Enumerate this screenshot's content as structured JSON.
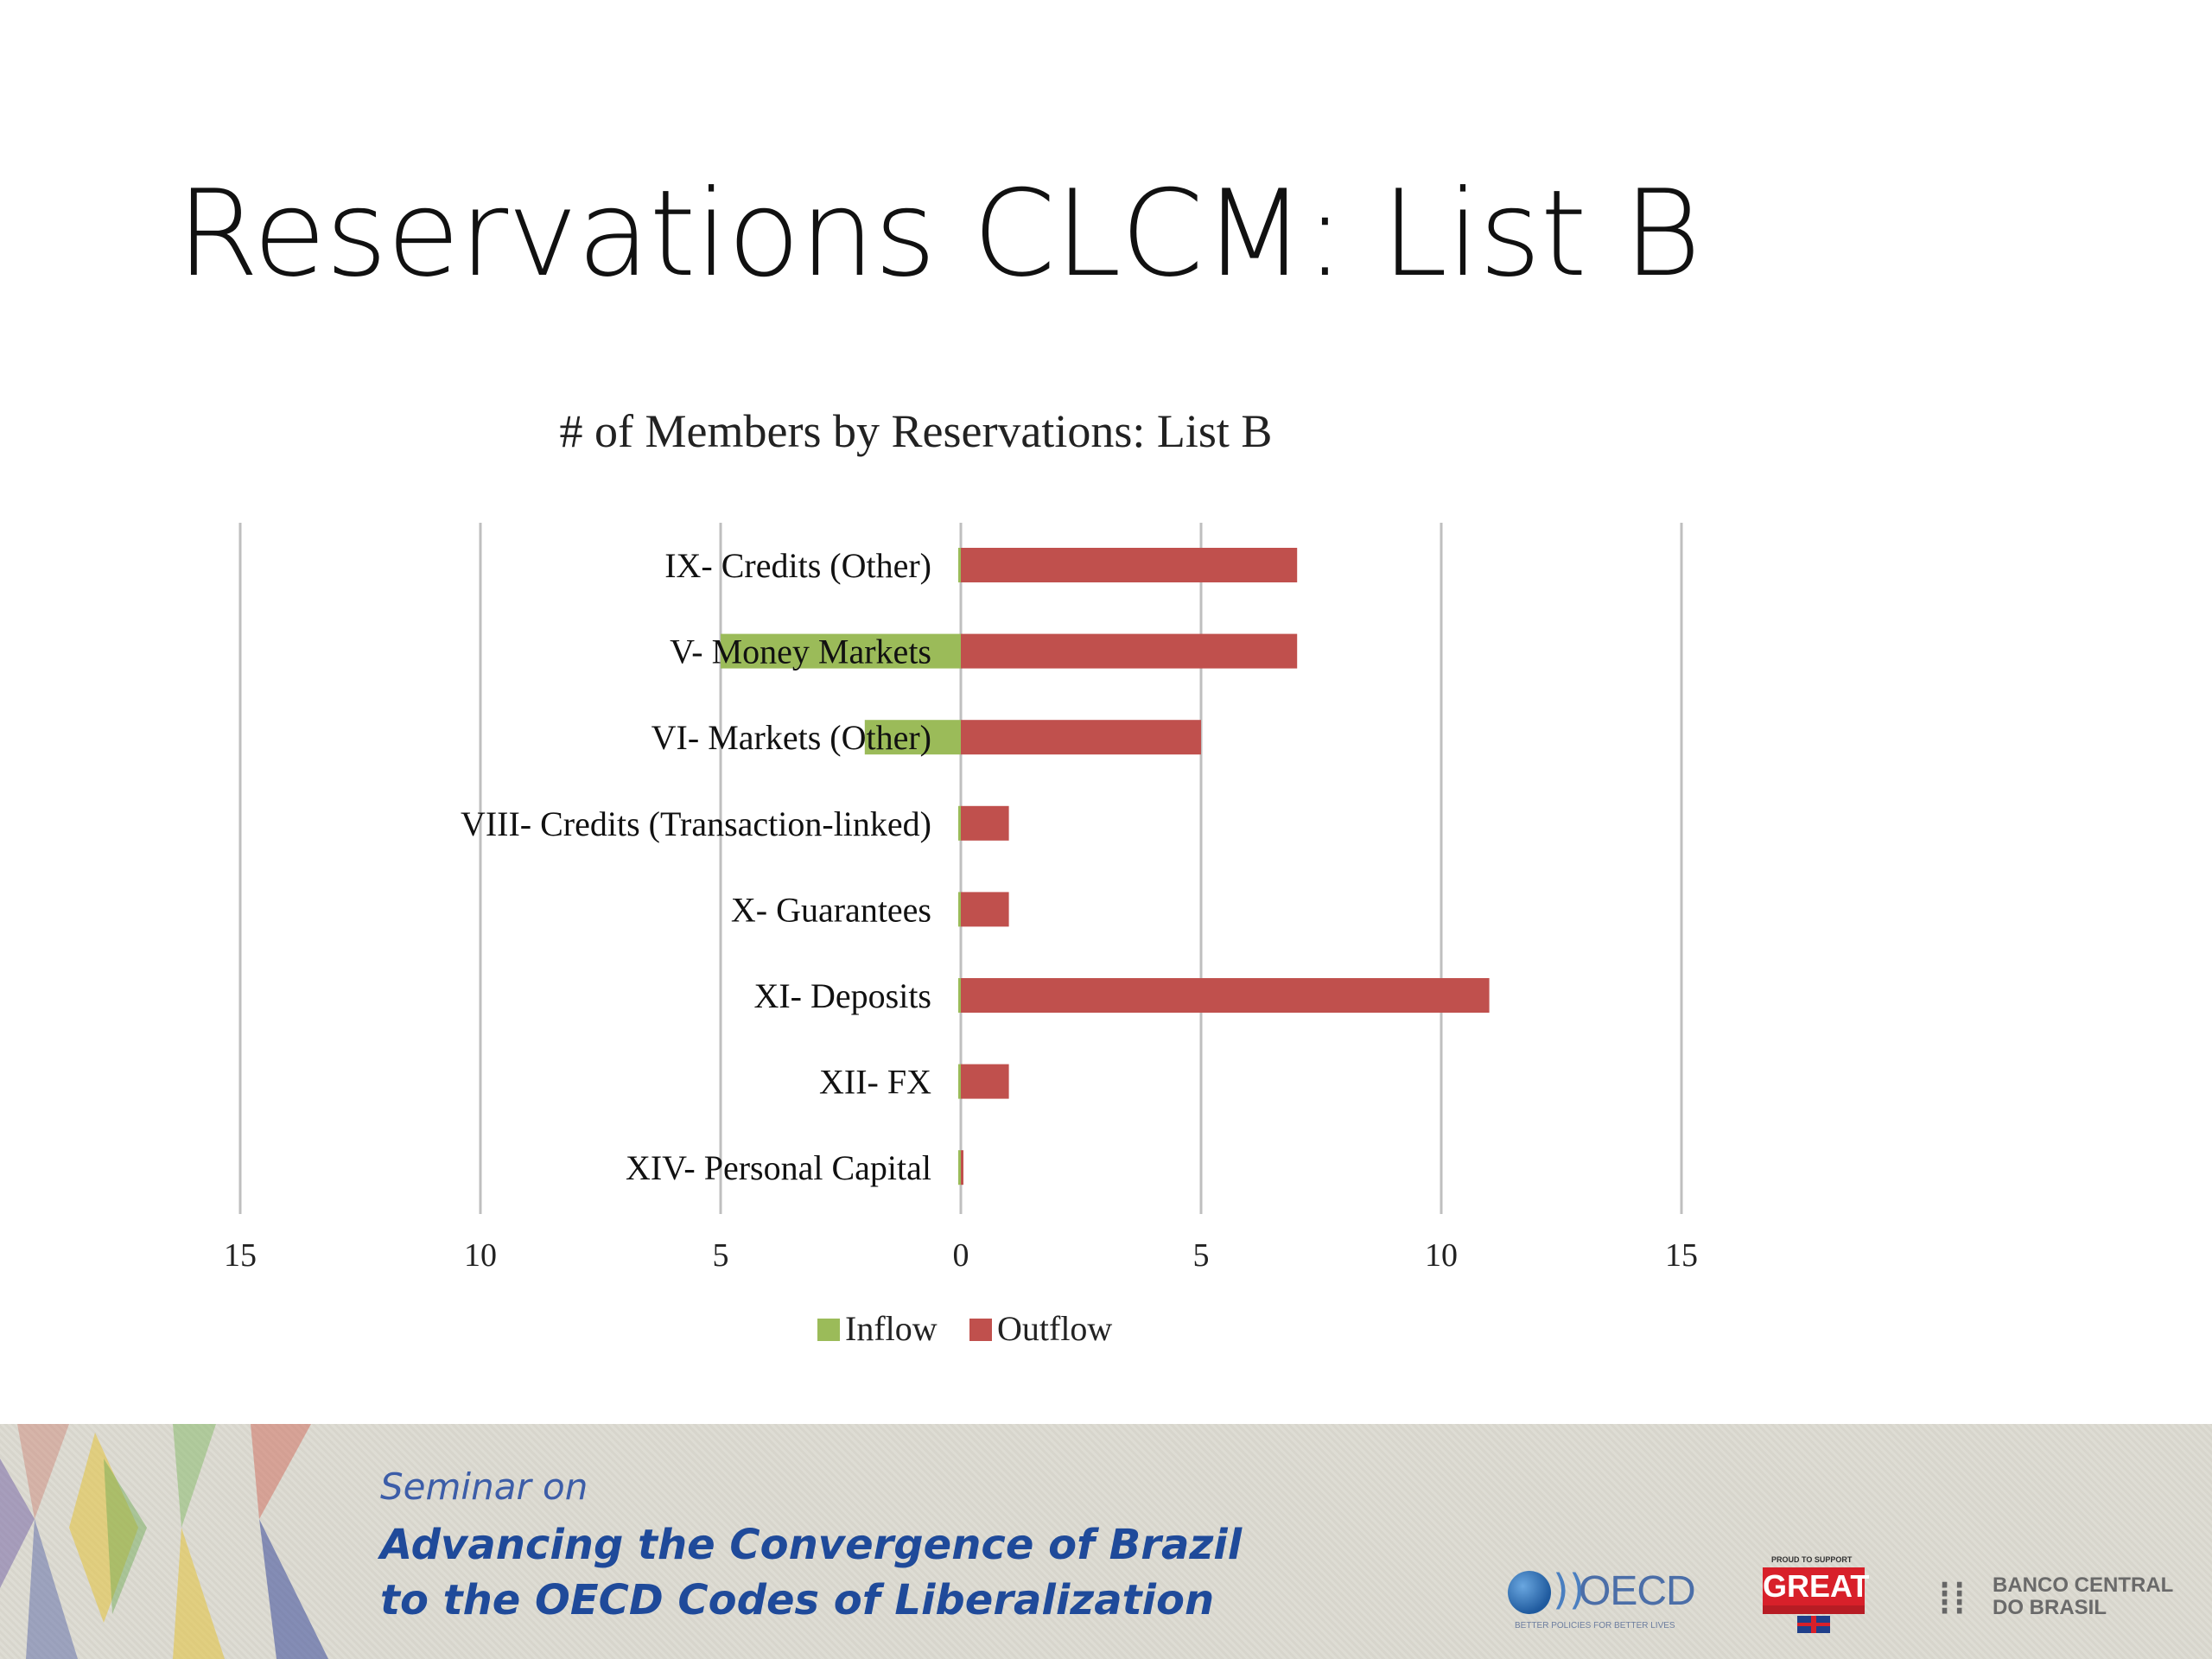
{
  "slide": {
    "title": "Reservations CLCM: List  B"
  },
  "chart_data": {
    "type": "bar",
    "orientation": "horizontal",
    "title": "# of Members by Reservations: List B",
    "categories": [
      "IX- Credits (Other)",
      "V- Money Markets",
      "VI- Markets (Other)",
      "VIII- Credits (Transaction-linked)",
      "X- Guarantees",
      "XI- Deposits",
      "XII- FX",
      "XIV- Personal Capital"
    ],
    "series": [
      {
        "name": "Inflow",
        "color": "#9bbb59",
        "values": [
          0,
          5,
          2,
          0,
          0,
          0,
          0,
          0
        ],
        "direction": "left"
      },
      {
        "name": "Outflow",
        "color": "#c0504d",
        "values": [
          7,
          7,
          5,
          1,
          1,
          11,
          1,
          0
        ],
        "direction": "right"
      }
    ],
    "x_ticks": [
      "15",
      "10",
      "5",
      "0",
      "5",
      "10",
      "15"
    ],
    "xlim": [
      -15,
      15
    ],
    "grid": true,
    "legend_position": "bottom"
  },
  "banner": {
    "line1": "Seminar on",
    "line2": "Advancing the Convergence of Brazil",
    "line3": "to the OECD Codes of Liberalization",
    "logos": {
      "oecd_text": "OECD",
      "oecd_tagline": "BETTER POLICIES FOR BETTER LIVES",
      "great_top": "PROUD TO SUPPORT",
      "great_text": "GREAT",
      "bcb_text_1": "BANCO CENTRAL",
      "bcb_text_2": "DO BRASIL"
    }
  }
}
